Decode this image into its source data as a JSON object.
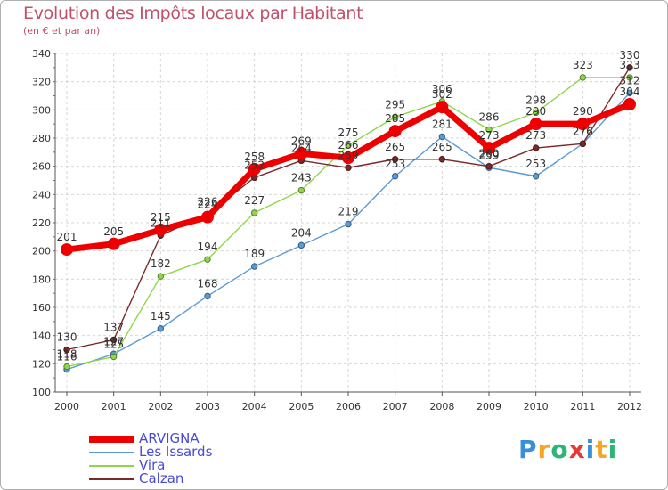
{
  "chart_data": {
    "type": "line",
    "title": "Evolution des Impôts locaux par Habitant",
    "subtitle": "(en € et par an)",
    "x": [
      "2000",
      "2001",
      "2002",
      "2003",
      "2004",
      "2005",
      "2006",
      "2007",
      "2008",
      "2009",
      "2010",
      "2011",
      "2012"
    ],
    "ylim": [
      100,
      340
    ],
    "yticks": [
      "100",
      "120",
      "140",
      "160",
      "180",
      "200",
      "220",
      "240",
      "260",
      "280",
      "300",
      "320",
      "340"
    ],
    "grid": true,
    "legend_position": "bottom-left",
    "series": [
      {
        "name": "ARVIGNA",
        "color": "#ee0000",
        "values": [
          201,
          205,
          215,
          224,
          258,
          269,
          266,
          285,
          302,
          273,
          290,
          290,
          304
        ],
        "labels": [
          "201",
          "205",
          "215",
          "224",
          "258",
          "269",
          "266",
          "285",
          "302",
          "273",
          "290",
          "290",
          "304"
        ]
      },
      {
        "name": "Les Issards",
        "color": "#5b9bd5",
        "values": [
          116,
          127,
          145,
          168,
          189,
          204,
          219,
          253,
          281,
          259,
          253,
          276,
          312
        ],
        "labels": [
          "116",
          "127",
          "145",
          "168",
          "189",
          "204",
          "219",
          "253",
          "281",
          "259",
          "253",
          "276",
          "312"
        ]
      },
      {
        "name": "Vira",
        "color": "#8fd64a",
        "values": [
          118,
          125,
          182,
          194,
          227,
          243,
          275,
          295,
          306,
          286,
          298,
          323,
          323
        ],
        "labels": [
          "118",
          "125",
          "182",
          "194",
          "227",
          "243",
          "275",
          "295",
          "306",
          "286",
          "298",
          "323",
          "323"
        ]
      },
      {
        "name": "Calzan",
        "color": "#7a2a2a",
        "values": [
          130,
          137,
          211,
          226,
          252,
          264,
          259,
          265,
          265,
          260,
          273,
          276,
          330
        ],
        "labels": [
          "130",
          "137",
          "211",
          "226",
          "252",
          "264",
          "259",
          "265",
          "265",
          "260",
          "273",
          "276",
          "330"
        ]
      }
    ]
  },
  "branding": {
    "logo_letters": [
      "P",
      "r",
      "o",
      "x",
      "i",
      "t",
      "i"
    ],
    "logo_colors": [
      "#3a8fd9",
      "#f5a623",
      "#2bb673",
      "#e53935",
      "#3a8fd9",
      "#f5a623",
      "#2bb673"
    ]
  }
}
